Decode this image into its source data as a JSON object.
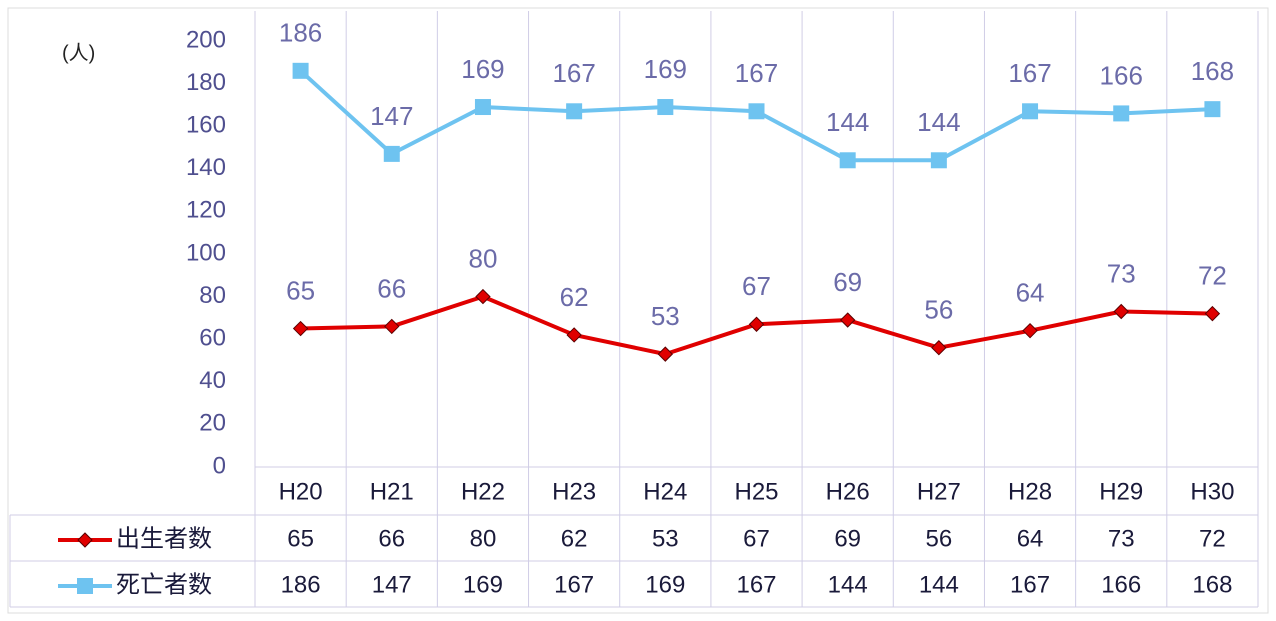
{
  "chart_data": {
    "type": "line",
    "unit_label": "(人)",
    "categories": [
      "H20",
      "H21",
      "H22",
      "H23",
      "H24",
      "H25",
      "H26",
      "H27",
      "H28",
      "H29",
      "H30"
    ],
    "series": [
      {
        "name": "出生者数",
        "color": "#e00000",
        "marker": "diamond",
        "values": [
          65,
          66,
          80,
          62,
          53,
          67,
          69,
          56,
          64,
          73,
          72
        ]
      },
      {
        "name": "死亡者数",
        "color": "#6ec3f0",
        "marker": "square",
        "values": [
          186,
          147,
          169,
          167,
          169,
          167,
          144,
          144,
          167,
          166,
          168
        ]
      }
    ],
    "ylim": [
      0,
      200
    ],
    "yticks": [
      0,
      20,
      40,
      60,
      80,
      100,
      120,
      140,
      160,
      180,
      200
    ],
    "grid": "vertical",
    "data_table": true
  }
}
